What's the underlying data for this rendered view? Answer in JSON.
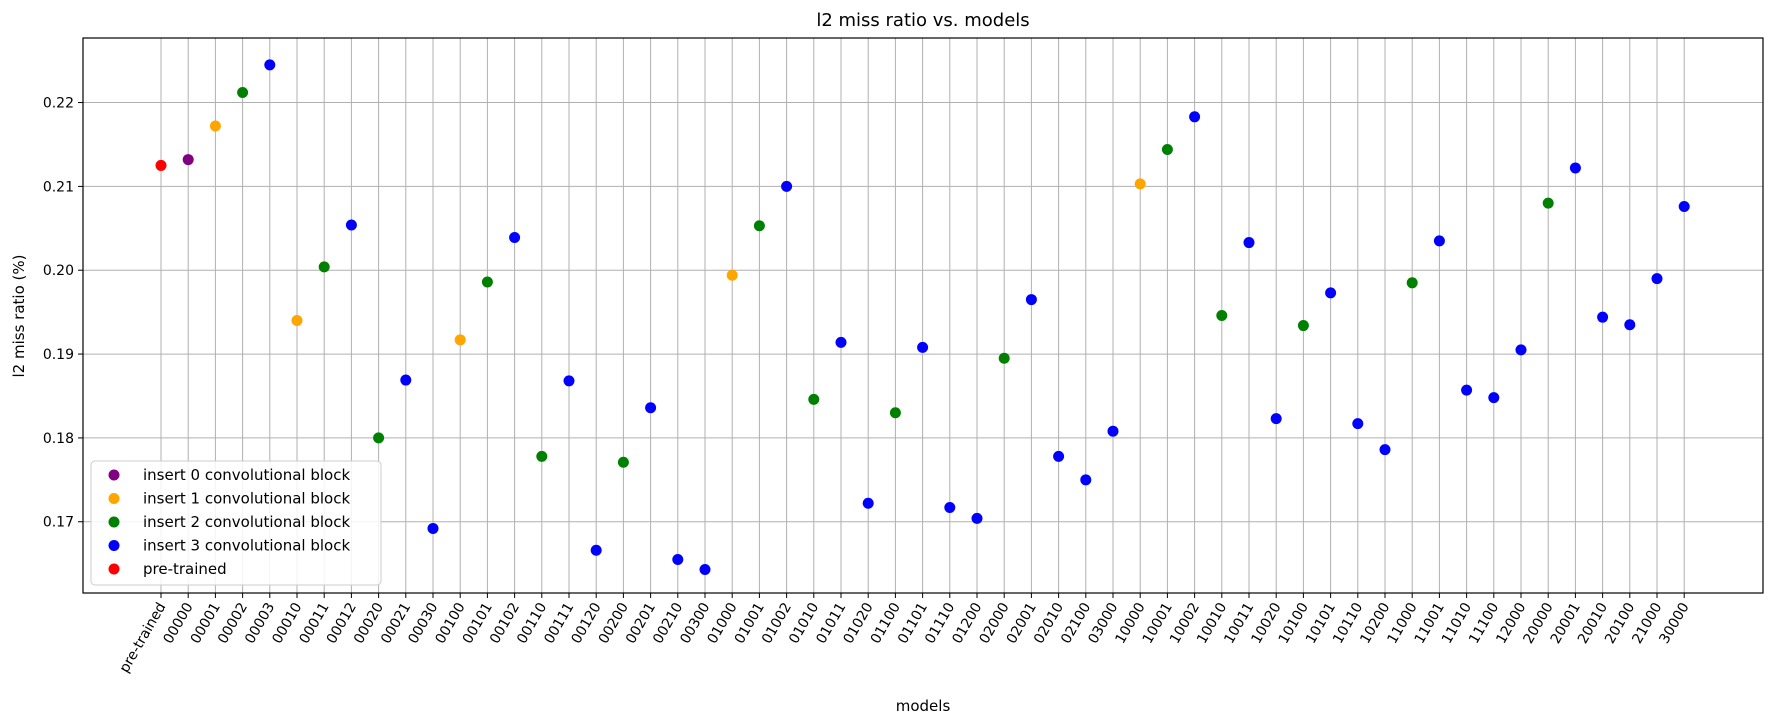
{
  "chart_data": {
    "type": "scatter",
    "title": "l2 miss ratio vs. models",
    "xlabel": "models",
    "ylabel": "l2 miss ratio (%)",
    "ylim": [
      0.1615,
      0.2277
    ],
    "yticks": [
      0.17,
      0.18,
      0.19,
      0.2,
      0.21,
      0.22
    ],
    "ytick_labels": [
      "0.17",
      "0.18",
      "0.19",
      "0.20",
      "0.21",
      "0.22"
    ],
    "grid": true,
    "legend_position": "lower-left",
    "categories": [
      "pre-trained",
      "00000",
      "00001",
      "00002",
      "00003",
      "00010",
      "00011",
      "00012",
      "00020",
      "00021",
      "00030",
      "00100",
      "00101",
      "00102",
      "00110",
      "00111",
      "00120",
      "00200",
      "00201",
      "00210",
      "00300",
      "01000",
      "01001",
      "01002",
      "01010",
      "01011",
      "01020",
      "01100",
      "01101",
      "01110",
      "01200",
      "02000",
      "02001",
      "02010",
      "02100",
      "03000",
      "10000",
      "10001",
      "10002",
      "10010",
      "10011",
      "10020",
      "10100",
      "10101",
      "10110",
      "10200",
      "11000",
      "11001",
      "11010",
      "11100",
      "12000",
      "20000",
      "20001",
      "20010",
      "20100",
      "21000",
      "30000"
    ],
    "series": [
      {
        "name": "insert 0 convolutional block",
        "color": "#800080",
        "x": [
          "00000"
        ],
        "y": [
          0.2132
        ]
      },
      {
        "name": "insert 1 convolutional block",
        "color": "#ffa500",
        "x": [
          "00001",
          "00010",
          "00100",
          "01000",
          "10000"
        ],
        "y": [
          0.2172,
          0.194,
          0.1917,
          0.1994,
          0.2103
        ]
      },
      {
        "name": "insert 2 convolutional block",
        "color": "#008000",
        "x": [
          "00002",
          "00011",
          "00020",
          "00101",
          "00110",
          "00200",
          "01001",
          "01010",
          "01100",
          "02000",
          "10001",
          "10010",
          "10100",
          "11000",
          "20000"
        ],
        "y": [
          0.2212,
          0.2004,
          0.18,
          0.1986,
          0.1778,
          0.1771,
          0.2053,
          0.1846,
          0.183,
          0.1895,
          0.2144,
          0.1946,
          0.1934,
          0.1985,
          0.208
        ]
      },
      {
        "name": "insert 3 convolutional block",
        "color": "#0000ff",
        "x": [
          "00003",
          "00012",
          "00021",
          "00030",
          "00102",
          "00111",
          "00120",
          "00201",
          "00210",
          "00300",
          "01002",
          "01011",
          "01020",
          "01101",
          "01110",
          "01200",
          "02001",
          "02010",
          "02100",
          "03000",
          "10002",
          "10011",
          "10020",
          "10101",
          "10110",
          "10200",
          "11001",
          "11010",
          "11100",
          "12000",
          "20001",
          "20010",
          "20100",
          "21000",
          "30000"
        ],
        "y": [
          0.2245,
          0.2054,
          0.1869,
          0.1692,
          0.2039,
          0.1868,
          0.1666,
          0.1836,
          0.1655,
          0.1643,
          0.21,
          0.1914,
          0.1722,
          0.1908,
          0.1717,
          0.1704,
          0.1965,
          0.1778,
          0.175,
          0.1808,
          0.2183,
          0.2033,
          0.1823,
          0.1973,
          0.1817,
          0.1786,
          0.2035,
          0.1857,
          0.1848,
          0.1905,
          0.2122,
          0.1944,
          0.1935,
          0.199,
          0.2076
        ]
      },
      {
        "name": "pre-trained",
        "color": "#ff0000",
        "x": [
          "pre-trained"
        ],
        "y": [
          0.2125
        ]
      }
    ]
  }
}
